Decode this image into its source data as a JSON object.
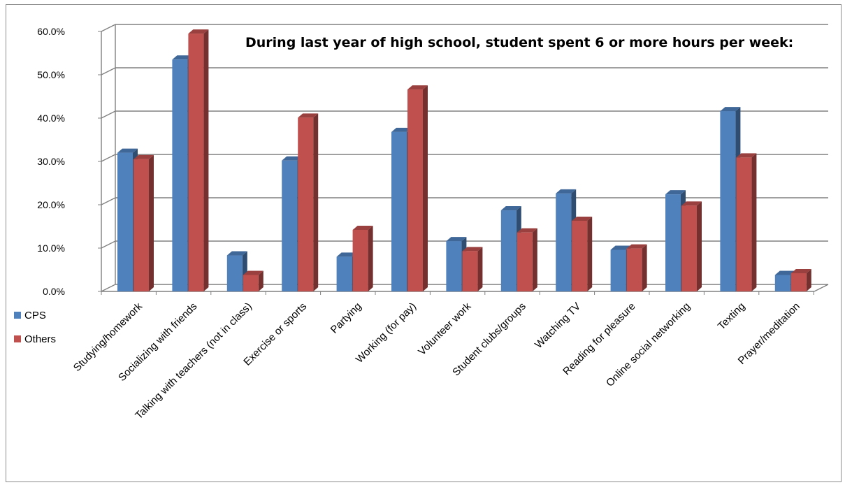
{
  "chart_data": {
    "type": "bar",
    "title": "During last year of high school, student spent 6 or more hours per week:",
    "categories": [
      "Studying/homework",
      "Socializing with friends",
      "Talking with teachers (not in class)",
      "Exercise or sports",
      "Partying",
      "Working (for pay)",
      "Volunteer work",
      "Student clubs/groups",
      "Watching TV",
      "Reading for pleasure",
      "Online social networking",
      "Texting",
      "Prayer/meditation"
    ],
    "series": [
      {
        "name": "CPS",
        "color": "#4f81bd",
        "values": [
          32.0,
          53.5,
          8.3,
          30.2,
          8.0,
          36.8,
          11.6,
          18.7,
          22.6,
          9.6,
          22.4,
          41.6,
          3.8
        ]
      },
      {
        "name": "Others",
        "color": "#c0504d",
        "values": [
          30.5,
          59.5,
          3.8,
          40.1,
          14.2,
          46.6,
          9.3,
          13.6,
          16.3,
          9.9,
          19.8,
          30.9,
          4.2
        ]
      }
    ],
    "y_ticks": [
      "0.0%",
      "10.0%",
      "20.0%",
      "30.0%",
      "40.0%",
      "50.0%",
      "60.0%"
    ],
    "ylim": [
      0,
      60
    ],
    "grid": true,
    "legend_position": "left"
  }
}
